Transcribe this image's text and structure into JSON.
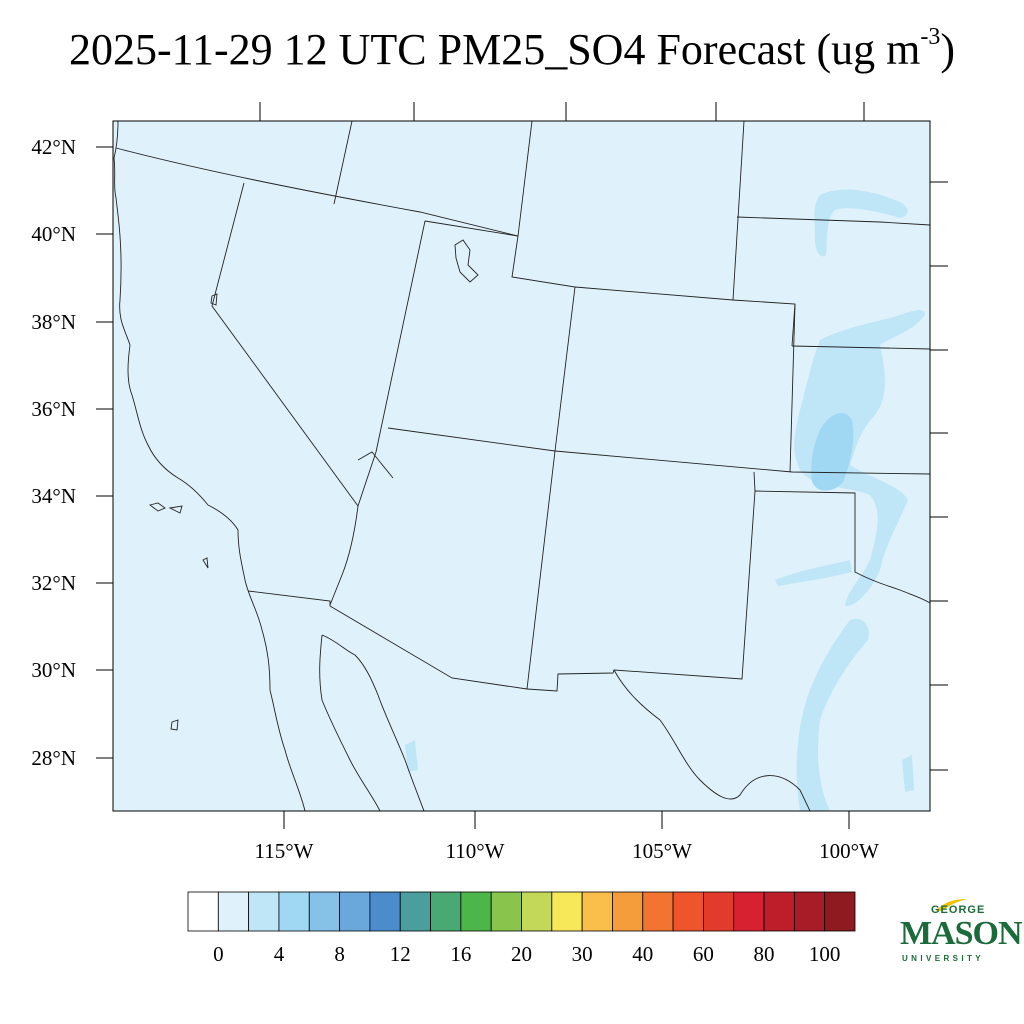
{
  "title": {
    "text": "2025-11-29 12 UTC PM25_SO4 Forecast (ug m",
    "superscript": "-3",
    "suffix": ")"
  },
  "map": {
    "background_color": "#dff2fb",
    "latitude_labels": [
      "42°N",
      "40°N",
      "38°N",
      "36°N",
      "34°N",
      "32°N",
      "30°N",
      "28°N"
    ],
    "longitude_labels": [
      "115°W",
      "110°W",
      "105°W",
      "100°W"
    ]
  },
  "colorbar": {
    "colors": [
      "#ffffff",
      "#dff2fb",
      "#bfe6f7",
      "#a0d8f4",
      "#86c1e8",
      "#6aa8dc",
      "#4b8dcc",
      "#4a9e9e",
      "#49a972",
      "#4cb64a",
      "#89c54c",
      "#c3d858",
      "#f7e85a",
      "#f9bf4a",
      "#f59c3b",
      "#f27430",
      "#ee552b",
      "#e33b2b",
      "#d72030",
      "#bd1e2a",
      "#a81c28",
      "#8f1a1f"
    ],
    "labels": [
      "0",
      "4",
      "8",
      "12",
      "16",
      "20",
      "30",
      "40",
      "60",
      "80",
      "100"
    ]
  },
  "logo": {
    "line1": "GEORGE",
    "line2": "MASON",
    "line3": "UNIVERSITY",
    "brand_color": "#1b6b3a",
    "accent_color": "#f2c200"
  }
}
